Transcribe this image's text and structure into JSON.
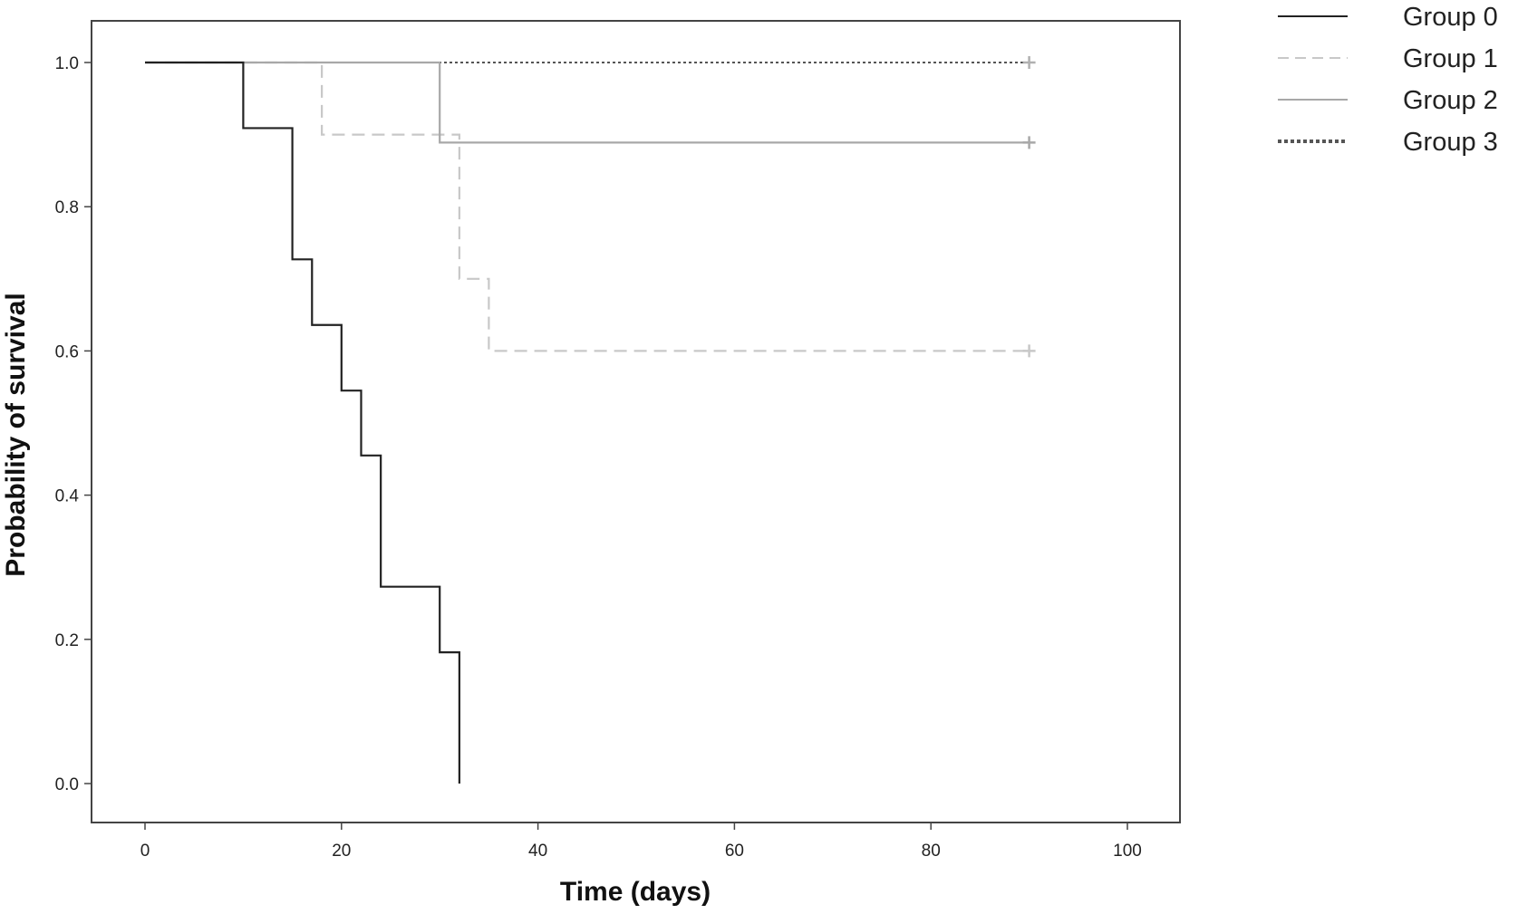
{
  "chart_data": {
    "type": "line",
    "subtype": "kaplan-meier step",
    "title": "",
    "xlabel": "Time (days)",
    "ylabel": "Probability of survival",
    "xlim": [
      0,
      100
    ],
    "ylim": [
      0,
      1.0
    ],
    "x_ticks": [
      "0",
      "20",
      "40",
      "60",
      "80",
      "100"
    ],
    "y_ticks": [
      "0.0",
      "0.2",
      "0.4",
      "0.6",
      "0.8",
      "1.0"
    ],
    "grid": false,
    "legend_position": "top-right, outside plot",
    "series": [
      {
        "name": "Group 0",
        "style": "solid",
        "color": "#222222",
        "steps": [
          [
            0,
            1.0
          ],
          [
            10,
            0.909
          ],
          [
            15,
            0.727
          ],
          [
            17,
            0.636
          ],
          [
            20,
            0.545
          ],
          [
            22,
            0.455
          ],
          [
            24,
            0.273
          ],
          [
            30,
            0.182
          ],
          [
            32,
            0.0
          ]
        ],
        "censored": []
      },
      {
        "name": "Group 1",
        "style": "dashed",
        "color": "#c8c8c8",
        "steps": [
          [
            0,
            1.0
          ],
          [
            18,
            0.9
          ],
          [
            32,
            0.7
          ],
          [
            35,
            0.6
          ]
        ],
        "end": 90,
        "censored": [
          [
            90,
            0.6
          ]
        ]
      },
      {
        "name": "Group 2",
        "style": "solid",
        "color": "#a8a8a8",
        "steps": [
          [
            0,
            1.0
          ],
          [
            30,
            0.889
          ]
        ],
        "end": 90,
        "censored": [
          [
            90,
            0.889
          ]
        ]
      },
      {
        "name": "Group 3",
        "style": "dotted",
        "color": "#555555",
        "steps": [
          [
            0,
            1.0
          ]
        ],
        "end": 90,
        "censored": [
          [
            90,
            1.0
          ]
        ]
      }
    ]
  }
}
